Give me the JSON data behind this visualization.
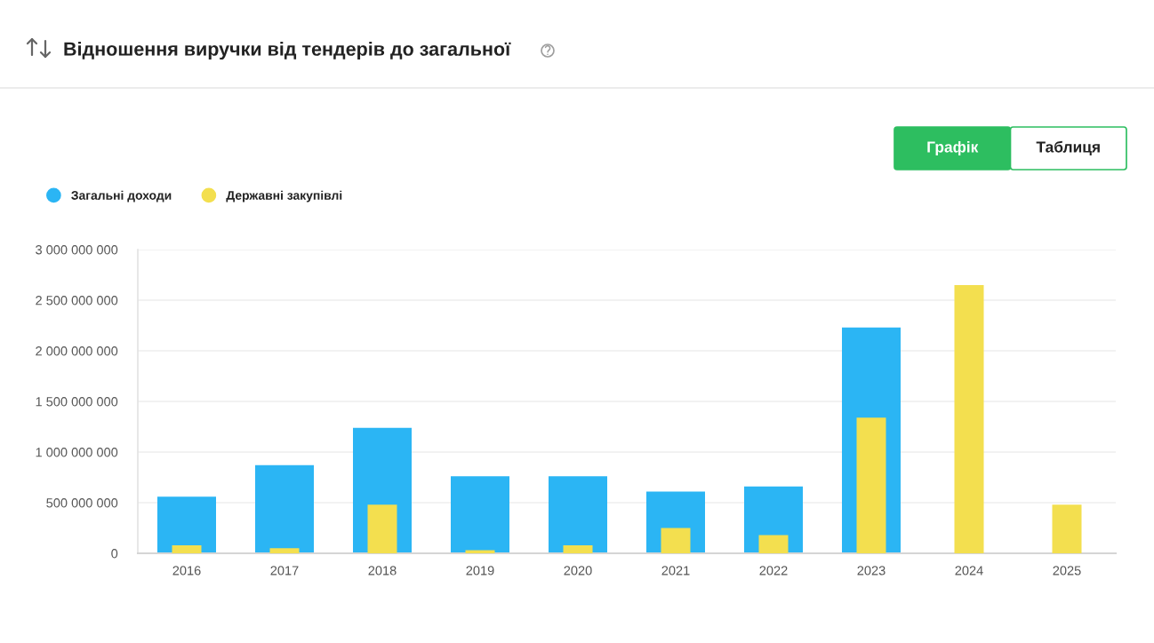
{
  "chart_data": {
    "type": "bar",
    "title": "Відношення виручки від тендерів до загальної",
    "categories": [
      "2016",
      "2017",
      "2018",
      "2019",
      "2020",
      "2021",
      "2022",
      "2023",
      "2024",
      "2025"
    ],
    "series": [
      {
        "name": "Загальні доходи",
        "color": "#2bb5f4",
        "values": [
          560000000,
          870000000,
          1240000000,
          760000000,
          760000000,
          610000000,
          660000000,
          2230000000,
          null,
          null
        ]
      },
      {
        "name": "Державні закупівлі",
        "color": "#f3df4f",
        "values": [
          80000000,
          50000000,
          480000000,
          30000000,
          80000000,
          250000000,
          180000000,
          1340000000,
          2650000000,
          480000000
        ]
      }
    ],
    "ylim": [
      0,
      3000000000
    ],
    "yticks": [
      0,
      {
        "value": 500000000,
        "label": "500 000 000"
      },
      {
        "value": 1000000000,
        "label": "1 000 000 000"
      },
      {
        "value": 1500000000,
        "label": "1 500 000 000"
      },
      {
        "value": 2000000000,
        "label": "2 000 000 000"
      },
      {
        "value": 2500000000,
        "label": "2 500 000 000"
      },
      {
        "value": 3000000000,
        "label": "3 000 000 000"
      }
    ],
    "grid": "y",
    "legend": "top left",
    "annotations": [
      "Графік",
      "Таблиця"
    ]
  }
}
